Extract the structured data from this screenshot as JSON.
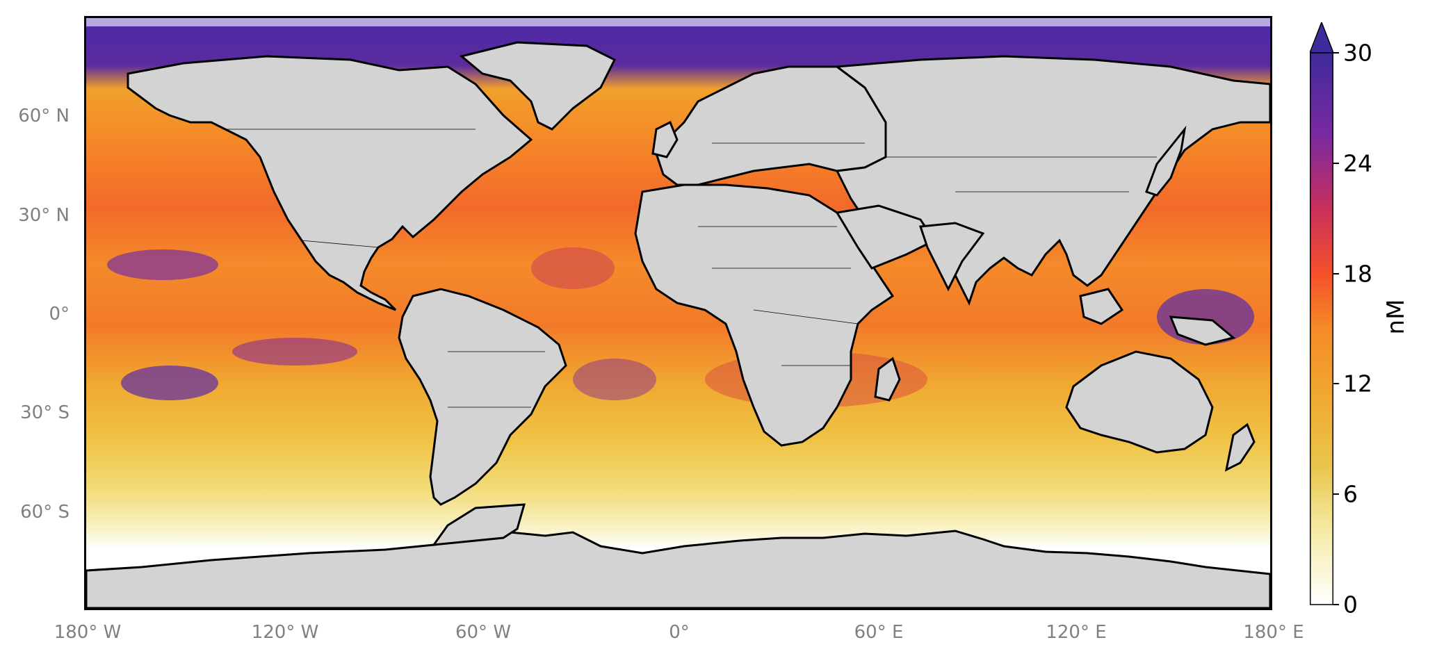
{
  "map": {
    "projection": "equirectangular",
    "extent": {
      "lon": [
        -180,
        180
      ],
      "lat": [
        -90,
        90
      ]
    },
    "land_color": "#d3d3d3",
    "coastline_color": "#000000",
    "border_color": "#000000"
  },
  "axes": {
    "lat_labels": [
      "60° N",
      "30° N",
      "0°",
      "30° S",
      "60° S"
    ],
    "lon_labels": [
      "180° W",
      "120° W",
      "60° W",
      "0°",
      "60° E",
      "120° E",
      "180° E"
    ]
  },
  "colorbar": {
    "unit": "nM",
    "min": 0,
    "max": 30,
    "extend": "max",
    "ticks": [
      "0",
      "6",
      "12",
      "18",
      "24",
      "30"
    ],
    "colors": [
      "#ffffff",
      "#f6eeb0",
      "#e9c64c",
      "#f0a830",
      "#f58a28",
      "#f4502a",
      "#c82f5d",
      "#7a2aa0",
      "#3f2a9c"
    ]
  }
}
